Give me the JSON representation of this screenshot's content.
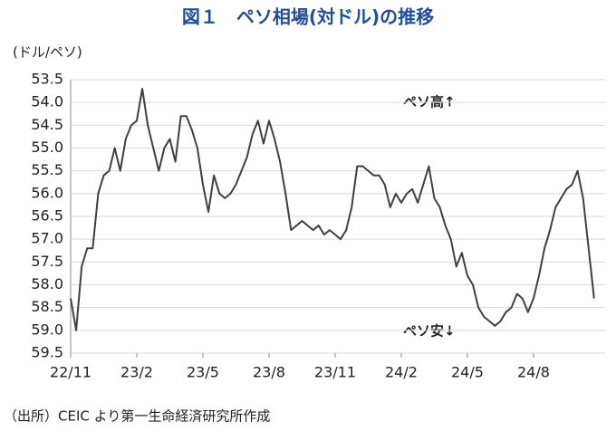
{
  "chart_data": {
    "type": "line",
    "title": "図１　ペソ相場(対ドル)の推移",
    "y_label": "(ドル/ペソ)",
    "annotations": [
      "ペソ高↑",
      "ペソ安↓"
    ],
    "source": "（出所）CEIC より第一生命経済研究所作成",
    "categories": [
      "22/11",
      null,
      null,
      null,
      null,
      null,
      null,
      null,
      null,
      null,
      null,
      null,
      "23/2",
      null,
      null,
      null,
      null,
      null,
      null,
      null,
      null,
      null,
      null,
      null,
      "23/5",
      null,
      null,
      null,
      null,
      null,
      null,
      null,
      null,
      null,
      null,
      null,
      "23/8",
      null,
      null,
      null,
      null,
      null,
      null,
      null,
      null,
      null,
      null,
      null,
      "23/11",
      null,
      null,
      null,
      null,
      null,
      null,
      null,
      null,
      null,
      null,
      null,
      "24/2",
      null,
      null,
      null,
      null,
      null,
      null,
      null,
      null,
      null,
      null,
      null,
      "24/5",
      null,
      null,
      null,
      null,
      null,
      null,
      null,
      null,
      null,
      null,
      null,
      "24/8",
      null,
      null,
      null,
      null,
      null,
      null,
      null,
      null,
      null,
      null,
      null
    ],
    "values": [
      58.3,
      59.0,
      57.6,
      57.2,
      57.2,
      56.0,
      55.6,
      55.5,
      55.0,
      55.5,
      54.8,
      54.5,
      54.4,
      53.7,
      54.5,
      55.0,
      55.5,
      55.0,
      54.8,
      55.3,
      54.3,
      54.3,
      54.6,
      55.0,
      55.8,
      56.4,
      55.6,
      56.0,
      56.1,
      56.0,
      55.8,
      55.5,
      55.2,
      54.7,
      54.4,
      54.9,
      54.4,
      54.8,
      55.3,
      56.0,
      56.8,
      56.7,
      56.6,
      56.7,
      56.8,
      56.7,
      56.9,
      56.8,
      56.9,
      57.0,
      56.8,
      56.3,
      55.4,
      55.4,
      55.5,
      55.6,
      55.6,
      55.8,
      56.3,
      56.0,
      56.2,
      56.0,
      55.9,
      56.2,
      55.8,
      55.4,
      56.1,
      56.3,
      56.7,
      57.0,
      57.6,
      57.3,
      57.8,
      58.0,
      58.5,
      58.7,
      58.8,
      58.9,
      58.8,
      58.6,
      58.5,
      58.2,
      58.3,
      58.6,
      58.3,
      57.8,
      57.2,
      56.8,
      56.3,
      56.1,
      55.9,
      55.8,
      55.5,
      56.1,
      57.2,
      58.3
    ],
    "color": "#404040",
    "ylim": [
      59.5,
      53.5
    ],
    "yticks": [
      53.5,
      {
        "value": 54,
        "label": "54.0"
      },
      54.5,
      {
        "value": 55,
        "label": "55.0"
      },
      55.5,
      {
        "value": 56,
        "label": "56.0"
      },
      56.5,
      {
        "value": 57,
        "label": "57.0"
      },
      57.5,
      {
        "value": 58,
        "label": "58.0"
      },
      58.5,
      {
        "value": 59,
        "label": "59.0"
      },
      59.5
    ],
    "grid": true
  }
}
